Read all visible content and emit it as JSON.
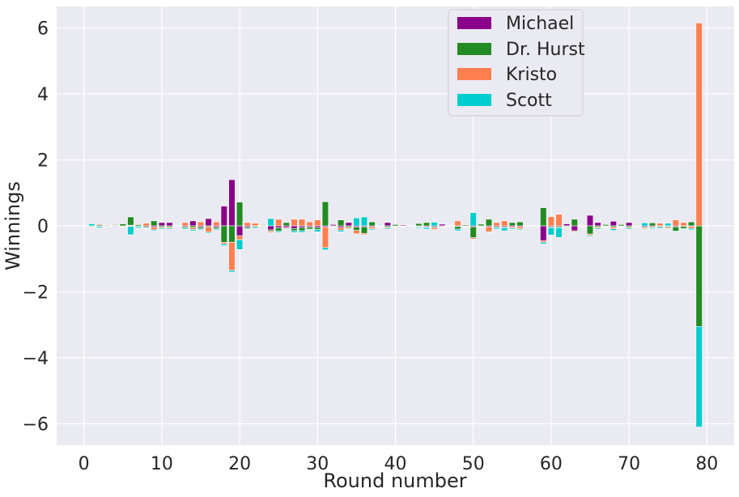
{
  "chart_data": {
    "type": "bar",
    "stacked": true,
    "xlabel": "Round number",
    "ylabel": "Winnings",
    "xlim": [
      -3.5,
      83.5
    ],
    "ylim": [
      -6.65,
      6.65
    ],
    "x_ticks": [
      0,
      10,
      20,
      30,
      40,
      50,
      60,
      70,
      80
    ],
    "y_ticks": [
      -6,
      -4,
      -2,
      0,
      2,
      4,
      6
    ],
    "grid": true,
    "legend_position": "top-right",
    "colors": {
      "Michael": "#8b008b",
      "Dr. Hurst": "#228b22",
      "Kristo": "#ff7f50",
      "Scott": "#00cdcd",
      "background": "#eaeaf2",
      "grid": "#ffffff"
    },
    "legend": [
      "Michael",
      "Dr. Hurst",
      "Kristo",
      "Scott"
    ],
    "rounds": [
      {
        "x": 1,
        "Michael": -0.02,
        "Dr. Hurst": -0.02,
        "Kristo": -0.02,
        "Scott": 0.06
      },
      {
        "x": 2,
        "Michael": -0.02,
        "Dr. Hurst": 0.03,
        "Kristo": 0.03,
        "Scott": -0.04
      },
      {
        "x": 3,
        "Michael": 0.01,
        "Dr. Hurst": 0.02,
        "Kristo": -0.02,
        "Scott": -0.01
      },
      {
        "x": 4,
        "Michael": 0.02,
        "Dr. Hurst": 0.02,
        "Kristo": -0.02,
        "Scott": -0.02
      },
      {
        "x": 5,
        "Michael": -0.02,
        "Dr. Hurst": 0.06,
        "Kristo": -0.02,
        "Scott": -0.02
      },
      {
        "x": 6,
        "Michael": 0.02,
        "Dr. Hurst": 0.25,
        "Kristo": -0.02,
        "Scott": -0.25
      },
      {
        "x": 7,
        "Michael": -0.02,
        "Dr. Hurst": 0.04,
        "Kristo": 0.02,
        "Scott": -0.04
      },
      {
        "x": 8,
        "Michael": -0.03,
        "Dr. Hurst": -0.03,
        "Kristo": 0.08,
        "Scott": -0.02
      },
      {
        "x": 9,
        "Michael": -0.04,
        "Dr. Hurst": 0.15,
        "Kristo": -0.08,
        "Scott": -0.03
      },
      {
        "x": 10,
        "Michael": 0.1,
        "Dr. Hurst": -0.04,
        "Kristo": -0.03,
        "Scott": -0.03
      },
      {
        "x": 11,
        "Michael": 0.1,
        "Dr. Hurst": -0.04,
        "Kristo": -0.03,
        "Scott": -0.03
      },
      {
        "x": 13,
        "Michael": -0.03,
        "Dr. Hurst": -0.04,
        "Kristo": 0.1,
        "Scott": -0.03
      },
      {
        "x": 14,
        "Michael": 0.15,
        "Dr. Hurst": -0.05,
        "Kristo": -0.06,
        "Scott": -0.04
      },
      {
        "x": 15,
        "Michael": -0.04,
        "Dr. Hurst": -0.05,
        "Kristo": 0.12,
        "Scott": -0.03
      },
      {
        "x": 16,
        "Michael": 0.22,
        "Dr. Hurst": -0.03,
        "Kristo": -0.16,
        "Scott": -0.03
      },
      {
        "x": 17,
        "Michael": -0.04,
        "Dr. Hurst": -0.05,
        "Kristo": 0.12,
        "Scott": -0.03
      },
      {
        "x": 18,
        "Michael": 0.6,
        "Dr. Hurst": -0.5,
        "Kristo": -0.05,
        "Scott": -0.05
      },
      {
        "x": 19,
        "Michael": 1.4,
        "Dr. Hurst": -0.5,
        "Kristo": -0.85,
        "Scott": -0.05
      },
      {
        "x": 20,
        "Michael": -0.3,
        "Dr. Hurst": 0.72,
        "Kristo": -0.12,
        "Scott": -0.3
      },
      {
        "x": 21,
        "Michael": -0.04,
        "Dr. Hurst": -0.04,
        "Kristo": 0.1,
        "Scott": -0.02
      },
      {
        "x": 22,
        "Michael": -0.02,
        "Dr. Hurst": -0.03,
        "Kristo": 0.08,
        "Scott": -0.03
      },
      {
        "x": 23,
        "Michael": 0.02,
        "Dr. Hurst": 0.02,
        "Kristo": -0.02,
        "Scott": -0.02
      },
      {
        "x": 24,
        "Michael": -0.12,
        "Dr. Hurst": -0.04,
        "Kristo": -0.04,
        "Scott": 0.22
      },
      {
        "x": 25,
        "Michael": -0.06,
        "Dr. Hurst": -0.1,
        "Kristo": 0.2,
        "Scott": -0.04
      },
      {
        "x": 26,
        "Michael": -0.05,
        "Dr. Hurst": 0.1,
        "Kristo": -0.03,
        "Scott": -0.02
      },
      {
        "x": 27,
        "Michael": -0.08,
        "Dr. Hurst": -0.07,
        "Kristo": 0.2,
        "Scott": -0.05
      },
      {
        "x": 28,
        "Michael": -0.05,
        "Dr. Hurst": -0.1,
        "Kristo": 0.2,
        "Scott": -0.05
      },
      {
        "x": 29,
        "Michael": -0.04,
        "Dr. Hurst": -0.06,
        "Kristo": 0.12,
        "Scott": -0.02
      },
      {
        "x": 30,
        "Michael": -0.05,
        "Dr. Hurst": -0.06,
        "Kristo": 0.18,
        "Scott": -0.07
      },
      {
        "x": 31,
        "Michael": -0.04,
        "Dr. Hurst": 0.73,
        "Kristo": -0.62,
        "Scott": -0.07
      },
      {
        "x": 32,
        "Michael": 0.04,
        "Dr. Hurst": -0.02,
        "Kristo": -0.01,
        "Scott": -0.01
      },
      {
        "x": 33,
        "Michael": -0.05,
        "Dr. Hurst": 0.18,
        "Kristo": -0.08,
        "Scott": -0.05
      },
      {
        "x": 34,
        "Michael": 0.1,
        "Dr. Hurst": -0.04,
        "Kristo": -0.04,
        "Scott": -0.02
      },
      {
        "x": 35,
        "Michael": -0.04,
        "Dr. Hurst": -0.1,
        "Kristo": -0.1,
        "Scott": 0.24
      },
      {
        "x": 36,
        "Michael": -0.03,
        "Dr. Hurst": -0.2,
        "Kristo": -0.04,
        "Scott": 0.27
      },
      {
        "x": 37,
        "Michael": -0.03,
        "Dr. Hurst": 0.12,
        "Kristo": -0.06,
        "Scott": -0.03
      },
      {
        "x": 38,
        "Michael": 0.02,
        "Dr. Hurst": -0.01,
        "Kristo": -0.01,
        "Scott": 0.02
      },
      {
        "x": 39,
        "Michael": 0.1,
        "Dr. Hurst": -0.04,
        "Kristo": -0.03,
        "Scott": -0.03
      },
      {
        "x": 40,
        "Michael": -0.02,
        "Dr. Hurst": 0.04,
        "Kristo": -0.01,
        "Scott": -0.01
      },
      {
        "x": 41,
        "Michael": 0.03,
        "Dr. Hurst": -0.01,
        "Kristo": -0.01,
        "Scott": -0.01
      },
      {
        "x": 43,
        "Michael": -0.02,
        "Dr. Hurst": 0.07,
        "Kristo": -0.02,
        "Scott": -0.03
      },
      {
        "x": 44,
        "Michael": -0.03,
        "Dr. Hurst": 0.1,
        "Kristo": -0.02,
        "Scott": -0.05
      },
      {
        "x": 45,
        "Michael": -0.03,
        "Dr. Hurst": -0.03,
        "Kristo": -0.05,
        "Scott": 0.11
      },
      {
        "x": 46,
        "Michael": 0.05,
        "Dr. Hurst": -0.02,
        "Kristo": -0.02,
        "Scott": -0.01
      },
      {
        "x": 48,
        "Michael": -0.02,
        "Dr. Hurst": -0.08,
        "Kristo": 0.15,
        "Scott": -0.05
      },
      {
        "x": 49,
        "Michael": -0.01,
        "Dr. Hurst": 0.03,
        "Kristo": -0.01,
        "Scott": -0.01
      },
      {
        "x": 50,
        "Michael": -0.03,
        "Dr. Hurst": -0.33,
        "Kristo": -0.04,
        "Scott": 0.4
      },
      {
        "x": 51,
        "Michael": -0.02,
        "Dr. Hurst": 0.05,
        "Kristo": -0.02,
        "Scott": -0.01
      },
      {
        "x": 52,
        "Michael": -0.03,
        "Dr. Hurst": 0.2,
        "Kristo": -0.15,
        "Scott": -0.02
      },
      {
        "x": 53,
        "Michael": -0.03,
        "Dr. Hurst": -0.03,
        "Kristo": 0.1,
        "Scott": -0.04
      },
      {
        "x": 54,
        "Michael": -0.03,
        "Dr. Hurst": -0.03,
        "Kristo": 0.15,
        "Scott": -0.09
      },
      {
        "x": 55,
        "Michael": -0.03,
        "Dr. Hurst": 0.1,
        "Kristo": -0.04,
        "Scott": -0.03
      },
      {
        "x": 56,
        "Michael": -0.03,
        "Dr. Hurst": 0.12,
        "Kristo": -0.06,
        "Scott": -0.03
      },
      {
        "x": 59,
        "Michael": -0.45,
        "Dr. Hurst": 0.55,
        "Kristo": -0.05,
        "Scott": -0.05
      },
      {
        "x": 60,
        "Michael": -0.03,
        "Dr. Hurst": -0.03,
        "Kristo": 0.28,
        "Scott": -0.22
      },
      {
        "x": 61,
        "Michael": -0.03,
        "Dr. Hurst": -0.03,
        "Kristo": 0.35,
        "Scott": -0.29
      },
      {
        "x": 62,
        "Michael": 0.06,
        "Dr. Hurst": -0.02,
        "Kristo": -0.02,
        "Scott": -0.02
      },
      {
        "x": 63,
        "Michael": -0.15,
        "Dr. Hurst": 0.2,
        "Kristo": -0.03,
        "Scott": -0.02
      },
      {
        "x": 64,
        "Michael": 0.02,
        "Dr. Hurst": -0.01,
        "Kristo": -0.01,
        "Scott": 0.0
      },
      {
        "x": 65,
        "Michael": 0.32,
        "Dr. Hurst": -0.25,
        "Kristo": -0.04,
        "Scott": -0.03
      },
      {
        "x": 66,
        "Michael": 0.1,
        "Dr. Hurst": -0.04,
        "Kristo": -0.03,
        "Scott": -0.03
      },
      {
        "x": 67,
        "Michael": -0.02,
        "Dr. Hurst": 0.04,
        "Kristo": -0.01,
        "Scott": -0.01
      },
      {
        "x": 68,
        "Michael": 0.14,
        "Dr. Hurst": -0.04,
        "Kristo": -0.05,
        "Scott": -0.05
      },
      {
        "x": 69,
        "Michael": -0.02,
        "Dr. Hurst": 0.04,
        "Kristo": -0.01,
        "Scott": -0.01
      },
      {
        "x": 70,
        "Michael": 0.1,
        "Dr. Hurst": -0.04,
        "Kristo": -0.03,
        "Scott": -0.03
      },
      {
        "x": 71,
        "Michael": -0.01,
        "Dr. Hurst": 0.02,
        "Kristo": -0.01,
        "Scott": 0.0
      },
      {
        "x": 72,
        "Michael": -0.03,
        "Dr. Hurst": -0.03,
        "Kristo": -0.03,
        "Scott": 0.09
      },
      {
        "x": 73,
        "Michael": -0.03,
        "Dr. Hurst": 0.09,
        "Kristo": -0.03,
        "Scott": -0.03
      },
      {
        "x": 74,
        "Michael": -0.02,
        "Dr. Hurst": -0.03,
        "Kristo": 0.08,
        "Scott": -0.03
      },
      {
        "x": 75,
        "Michael": -0.02,
        "Dr. Hurst": -0.03,
        "Kristo": -0.03,
        "Scott": 0.08
      },
      {
        "x": 76,
        "Michael": -0.03,
        "Dr. Hurst": -0.13,
        "Kristo": 0.18,
        "Scott": -0.02
      },
      {
        "x": 77,
        "Michael": -0.02,
        "Dr. Hurst": -0.06,
        "Kristo": 0.1,
        "Scott": -0.02
      },
      {
        "x": 78,
        "Michael": -0.02,
        "Dr. Hurst": 0.12,
        "Kristo": -0.06,
        "Scott": -0.04
      },
      {
        "x": 79,
        "Michael": 0.0,
        "Dr. Hurst": -3.05,
        "Kristo": 6.15,
        "Scott": -3.05
      }
    ]
  }
}
